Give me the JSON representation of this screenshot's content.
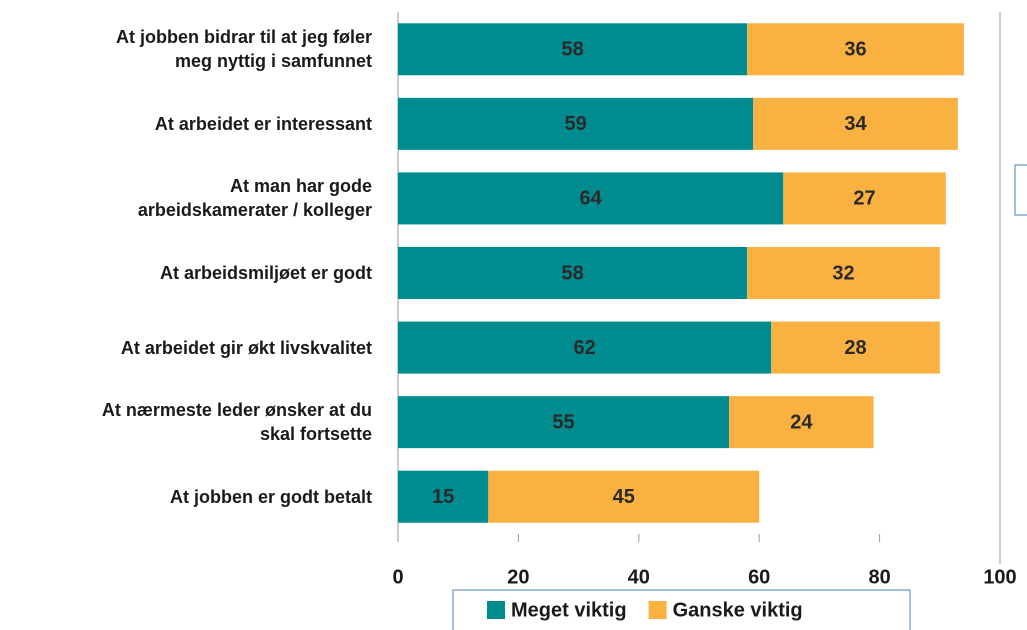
{
  "chart_data": {
    "type": "bar",
    "orientation": "horizontal",
    "stacked": true,
    "categories": [
      "At jobben bidrar til at jeg føler\nmeg nyttig i samfunnet",
      "At arbeidet er interessant",
      "At man har gode\narbeidskamerater / kolleger",
      "At arbeidsmiljøet er godt",
      "At arbeidet gir økt livskvalitet",
      "At nærmeste leder ønsker at du\nskal fortsette",
      "At jobben er godt betalt"
    ],
    "series": [
      {
        "name": "Meget viktig",
        "color": "#008b8e",
        "values": [
          58,
          59,
          64,
          58,
          62,
          55,
          15
        ]
      },
      {
        "name": "Ganske viktig",
        "color": "#f9b141",
        "values": [
          36,
          34,
          27,
          32,
          28,
          24,
          45
        ]
      }
    ],
    "xlim": [
      0,
      100
    ],
    "xticks": [
      0,
      20,
      40,
      60,
      80,
      100
    ],
    "legend": "bottom"
  }
}
